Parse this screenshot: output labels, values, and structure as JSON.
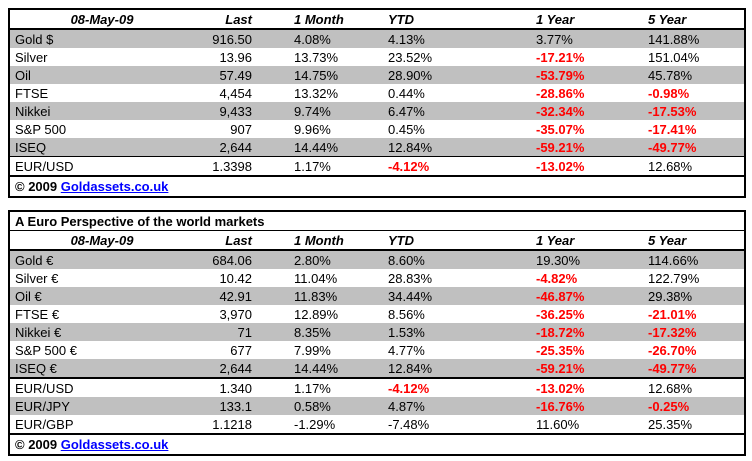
{
  "colors": {
    "row_shaded_gray": "#C0C0C0",
    "negative_red": "#FF0000",
    "link_blue": "#0000FF",
    "border_black": "#000000",
    "background": "#FFFFFF"
  },
  "market_table": {
    "columns": {
      "date": "08-May-09",
      "last": "Last",
      "month1": "1 Month",
      "ytd": "YTD",
      "year1": "1 Year",
      "year5": "5 Year"
    },
    "rows": [
      {
        "name": "Gold $",
        "values": [
          "916.50",
          "4.08%",
          "4.13%",
          "3.77%",
          "141.88%"
        ],
        "red": [
          0,
          0,
          0,
          0,
          0
        ]
      },
      {
        "name": "Silver",
        "values": [
          "13.96",
          "13.73%",
          "23.52%",
          "-17.21%",
          "151.04%"
        ],
        "red": [
          0,
          0,
          0,
          1,
          0
        ]
      },
      {
        "name": "Oil",
        "values": [
          "57.49",
          "14.75%",
          "28.90%",
          "-53.79%",
          "45.78%"
        ],
        "red": [
          0,
          0,
          0,
          1,
          0
        ]
      },
      {
        "name": "FTSE",
        "values": [
          "4,454",
          "13.32%",
          "0.44%",
          "-28.86%",
          "-0.98%"
        ],
        "red": [
          0,
          0,
          0,
          1,
          1
        ]
      },
      {
        "name": "Nikkei",
        "values": [
          "9,433",
          "9.74%",
          "6.47%",
          "-32.34%",
          "-17.53%"
        ],
        "red": [
          0,
          0,
          0,
          1,
          1
        ]
      },
      {
        "name": "S&P 500",
        "values": [
          "907",
          "9.96%",
          "0.45%",
          "-35.07%",
          "-17.41%"
        ],
        "red": [
          0,
          0,
          0,
          1,
          1
        ]
      },
      {
        "name": "ISEQ",
        "values": [
          "2,644",
          "14.44%",
          "12.84%",
          "-59.21%",
          "-49.77%"
        ],
        "red": [
          0,
          0,
          0,
          1,
          1
        ]
      }
    ],
    "fx_rows": [
      {
        "name": "EUR/USD",
        "values": [
          "1.3398",
          "1.17%",
          "-4.12%",
          "-13.02%",
          "12.68%"
        ],
        "red": [
          0,
          0,
          1,
          1,
          0
        ]
      }
    ],
    "footer": {
      "copyright": "© 2009",
      "link": "Goldassets.co.uk"
    }
  },
  "euro_table": {
    "title": "A Euro Perspective of the world markets",
    "columns": {
      "date": "08-May-09",
      "last": "Last",
      "month1": "1 Month",
      "ytd": "YTD",
      "year1": "1 Year",
      "year5": "5 Year"
    },
    "rows": [
      {
        "name": "Gold €",
        "values": [
          "684.06",
          "2.80%",
          "8.60%",
          "19.30%",
          "114.66%"
        ],
        "red": [
          0,
          0,
          0,
          0,
          0
        ]
      },
      {
        "name": "Silver €",
        "values": [
          "10.42",
          "11.04%",
          "28.83%",
          "-4.82%",
          "122.79%"
        ],
        "red": [
          0,
          0,
          0,
          1,
          0
        ]
      },
      {
        "name": "Oil €",
        "values": [
          "42.91",
          "11.83%",
          "34.44%",
          "-46.87%",
          "29.38%"
        ],
        "red": [
          0,
          0,
          0,
          1,
          0
        ]
      },
      {
        "name": "FTSE €",
        "values": [
          "3,970",
          "12.89%",
          "8.56%",
          "-36.25%",
          "-21.01%"
        ],
        "red": [
          0,
          0,
          0,
          1,
          1
        ]
      },
      {
        "name": "Nikkei €",
        "values": [
          "71",
          "8.35%",
          "1.53%",
          "-18.72%",
          "-17.32%"
        ],
        "red": [
          0,
          0,
          0,
          1,
          1
        ]
      },
      {
        "name": "S&P 500 €",
        "values": [
          "677",
          "7.99%",
          "4.77%",
          "-25.35%",
          "-26.70%"
        ],
        "red": [
          0,
          0,
          0,
          1,
          1
        ]
      },
      {
        "name": "ISEQ €",
        "values": [
          "2,644",
          "14.44%",
          "12.84%",
          "-59.21%",
          "-49.77%"
        ],
        "red": [
          0,
          0,
          0,
          1,
          1
        ]
      }
    ],
    "fx_rows": [
      {
        "name": "EUR/USD",
        "values": [
          "1.340",
          "1.17%",
          "-4.12%",
          "-13.02%",
          "12.68%"
        ],
        "red": [
          0,
          0,
          1,
          1,
          0
        ]
      },
      {
        "name": "EUR/JPY",
        "values": [
          "133.1",
          "0.58%",
          "4.87%",
          "-16.76%",
          "-0.25%"
        ],
        "red": [
          0,
          0,
          0,
          1,
          1
        ]
      },
      {
        "name": "EUR/GBP",
        "values": [
          "1.1218",
          "-1.29%",
          "-7.48%",
          "11.60%",
          "25.35%"
        ],
        "red": [
          0,
          0,
          0,
          0,
          0
        ]
      }
    ],
    "footer": {
      "copyright": "© 2009",
      "link": "Goldassets.co.uk"
    }
  }
}
